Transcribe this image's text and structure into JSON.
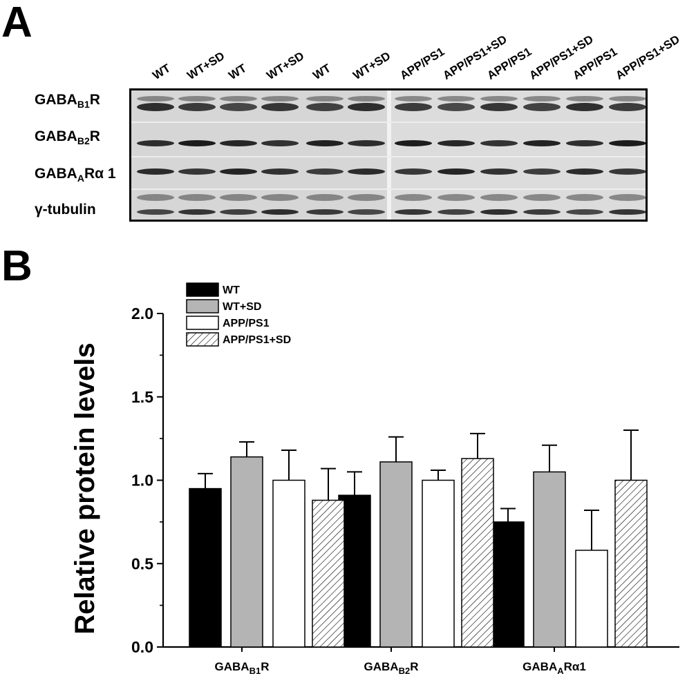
{
  "panel_a": {
    "letter": "A",
    "lanes": [
      "WT",
      "WT+SD",
      "WT",
      "WT+SD",
      "WT",
      "WT+SD",
      "APP/PS1",
      "APP/PS1+SD",
      "APP/PS1",
      "APP/PS1+SD",
      "APP/PS1",
      "APP/PS1+SD"
    ],
    "rows": [
      {
        "main": "GABA",
        "sub": "B1",
        "suffix": "R"
      },
      {
        "main": "GABA",
        "sub": "B2",
        "suffix": "R"
      },
      {
        "main": "GABA",
        "sub": "A",
        "suffix": "Rα 1"
      },
      {
        "main": "γ-tubulin",
        "sub": "",
        "suffix": ""
      }
    ]
  },
  "panel_b": {
    "letter": "B"
  },
  "chart_data": {
    "type": "bar",
    "title": "",
    "ylabel": "Relative protein levels",
    "xlabel": "",
    "ylim": [
      0,
      2.0
    ],
    "yticks": [
      "0.0",
      "0.5",
      "1.0",
      "1.5",
      "2.0"
    ],
    "categories": [
      {
        "main": "GABA",
        "sub": "B1",
        "suffix": "R"
      },
      {
        "main": "GABA",
        "sub": "B2",
        "suffix": "R"
      },
      {
        "main": "GABA",
        "sub": "A",
        "suffix": "Rα1"
      }
    ],
    "series": [
      {
        "name": "WT",
        "fill": "#000000",
        "values": [
          0.95,
          0.91,
          0.75
        ],
        "errors": [
          0.09,
          0.14,
          0.08
        ]
      },
      {
        "name": "WT+SD",
        "fill": "#b4b4b4",
        "values": [
          1.14,
          1.11,
          1.05
        ],
        "errors": [
          0.09,
          0.15,
          0.16
        ]
      },
      {
        "name": "APP/PS1",
        "fill": "#ffffff",
        "values": [
          1.0,
          1.0,
          0.58
        ],
        "errors": [
          0.18,
          0.06,
          0.24
        ]
      },
      {
        "name": "APP/PS1+SD",
        "fill": "hatch",
        "values": [
          0.88,
          1.13,
          1.0
        ],
        "errors": [
          0.19,
          0.15,
          0.3
        ]
      }
    ],
    "legend_position": "top-left"
  }
}
